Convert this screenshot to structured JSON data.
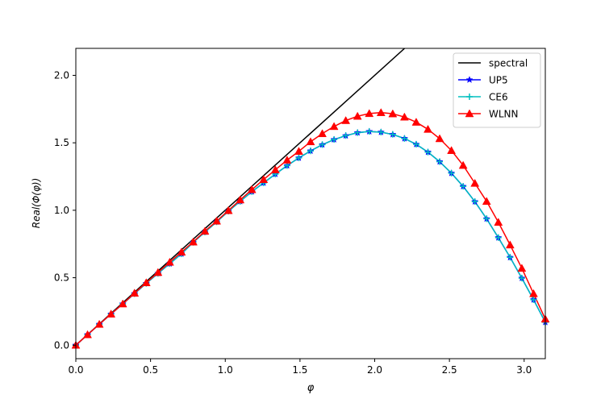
{
  "chart_data": {
    "type": "line",
    "xlabel": "φ",
    "ylabel": "Real(Φ(φ))",
    "xlim": [
      0,
      3.14159
    ],
    "ylim": [
      -0.1,
      2.2
    ],
    "xticks": [
      0.0,
      0.5,
      1.0,
      1.5,
      2.0,
      2.5,
      3.0
    ],
    "xtick_labels": [
      "0.0",
      "0.5",
      "1.0",
      "1.5",
      "2.0",
      "2.5",
      "3.0"
    ],
    "yticks": [
      0.0,
      0.5,
      1.0,
      1.5,
      2.0
    ],
    "ytick_labels": [
      "0.0",
      "0.5",
      "1.0",
      "1.5",
      "2.0"
    ],
    "grid": false,
    "legend_position": "top-right",
    "series": [
      {
        "name": "spectral",
        "color": "#000000",
        "marker": "none",
        "x": [
          0.0,
          2.2
        ],
        "y": [
          0.0,
          2.2
        ]
      },
      {
        "name": "UP5",
        "color": "#0000ff",
        "marker": "star",
        "x": [
          0.0,
          0.0785,
          0.1571,
          0.2356,
          0.3142,
          0.3927,
          0.4712,
          0.5498,
          0.6283,
          0.7069,
          0.7854,
          0.8639,
          0.9425,
          1.021,
          1.0996,
          1.1781,
          1.2566,
          1.3352,
          1.4137,
          1.4923,
          1.5708,
          1.6493,
          1.7279,
          1.8064,
          1.885,
          1.9635,
          2.042,
          2.1206,
          2.1991,
          2.2777,
          2.3562,
          2.4347,
          2.5133,
          2.5918,
          2.6704,
          2.7489,
          2.8274,
          2.906,
          2.9845,
          3.0631,
          3.1416
        ],
        "y": [
          0.0,
          0.078,
          0.155,
          0.231,
          0.306,
          0.382,
          0.458,
          0.532,
          0.604,
          0.677,
          0.762,
          0.838,
          0.914,
          0.993,
          1.066,
          1.138,
          1.203,
          1.268,
          1.331,
          1.388,
          1.44,
          1.486,
          1.524,
          1.553,
          1.575,
          1.584,
          1.579,
          1.562,
          1.532,
          1.489,
          1.431,
          1.36,
          1.275,
          1.177,
          1.064,
          0.937,
          0.797,
          0.651,
          0.497,
          0.337,
          0.17
        ]
      },
      {
        "name": "CE6",
        "color": "#00bfbf",
        "marker": "plus",
        "x": [
          0.0,
          0.0785,
          0.1571,
          0.2356,
          0.3142,
          0.3927,
          0.4712,
          0.5498,
          0.6283,
          0.7069,
          0.7854,
          0.8639,
          0.9425,
          1.021,
          1.0996,
          1.1781,
          1.2566,
          1.3352,
          1.4137,
          1.4923,
          1.5708,
          1.6493,
          1.7279,
          1.8064,
          1.885,
          1.9635,
          2.042,
          2.1206,
          2.1991,
          2.2777,
          2.3562,
          2.4347,
          2.5133,
          2.5918,
          2.6704,
          2.7489,
          2.8274,
          2.906,
          2.9845,
          3.0631,
          3.1416
        ],
        "y": [
          0.0,
          0.078,
          0.155,
          0.231,
          0.306,
          0.382,
          0.458,
          0.532,
          0.604,
          0.677,
          0.762,
          0.838,
          0.914,
          0.993,
          1.066,
          1.138,
          1.203,
          1.268,
          1.331,
          1.388,
          1.44,
          1.486,
          1.524,
          1.553,
          1.575,
          1.584,
          1.579,
          1.562,
          1.532,
          1.489,
          1.431,
          1.36,
          1.275,
          1.177,
          1.064,
          0.937,
          0.797,
          0.651,
          0.497,
          0.337,
          0.17
        ]
      },
      {
        "name": "WLNN",
        "color": "#ff0000",
        "marker": "triangle",
        "x": [
          0.0,
          0.0785,
          0.1571,
          0.2356,
          0.3142,
          0.3927,
          0.4712,
          0.5498,
          0.6283,
          0.7069,
          0.7854,
          0.8639,
          0.9425,
          1.021,
          1.0996,
          1.1781,
          1.2566,
          1.3352,
          1.4137,
          1.4923,
          1.5708,
          1.6493,
          1.7279,
          1.8064,
          1.885,
          1.9635,
          2.042,
          2.1206,
          2.1991,
          2.2777,
          2.3562,
          2.4347,
          2.5133,
          2.5918,
          2.6704,
          2.7489,
          2.8274,
          2.906,
          2.9845,
          3.0631,
          3.1416
        ],
        "y": [
          0.0,
          0.078,
          0.155,
          0.231,
          0.306,
          0.386,
          0.463,
          0.539,
          0.615,
          0.69,
          0.765,
          0.845,
          0.92,
          0.998,
          1.077,
          1.153,
          1.228,
          1.3,
          1.372,
          1.437,
          1.508,
          1.568,
          1.621,
          1.665,
          1.697,
          1.717,
          1.724,
          1.715,
          1.691,
          1.653,
          1.6,
          1.531,
          1.443,
          1.333,
          1.2,
          1.066,
          0.911,
          0.743,
          0.57,
          0.382,
          0.194
        ]
      }
    ]
  }
}
